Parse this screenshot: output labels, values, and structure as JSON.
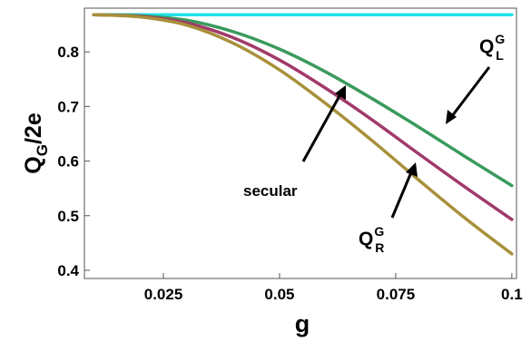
{
  "chart_data": {
    "type": "line",
    "xlabel": "g",
    "ylabel": {
      "main": "Q",
      "sub": "G",
      "rest": "/2e"
    },
    "xlim": [
      0.008,
      0.101
    ],
    "ylim": [
      0.385,
      0.88
    ],
    "xticks": [
      {
        "value": 0.025,
        "label": "0.025"
      },
      {
        "value": 0.05,
        "label": "0.05"
      },
      {
        "value": 0.075,
        "label": "0.075"
      },
      {
        "value": 0.1,
        "label": "0.1"
      }
    ],
    "yticks": [
      {
        "value": 0.4,
        "label": "0.4"
      },
      {
        "value": 0.5,
        "label": "0.5"
      },
      {
        "value": 0.6,
        "label": "0.6"
      },
      {
        "value": 0.7,
        "label": "0.7"
      },
      {
        "value": 0.8,
        "label": "0.8"
      }
    ],
    "grid": false,
    "series": [
      {
        "key": "flat",
        "color": "#22e0e8",
        "x": [
          0.01,
          0.02,
          0.03,
          0.04,
          0.05,
          0.06,
          0.07,
          0.08,
          0.09,
          0.1
        ],
        "y": [
          0.868,
          0.868,
          0.868,
          0.868,
          0.868,
          0.868,
          0.868,
          0.868,
          0.868,
          0.868
        ]
      },
      {
        "key": "QL",
        "color": "#3a9a5c",
        "x": [
          0.01,
          0.02,
          0.03,
          0.04,
          0.05,
          0.06,
          0.07,
          0.08,
          0.09,
          0.1
        ],
        "y": [
          0.868,
          0.866,
          0.858,
          0.837,
          0.805,
          0.763,
          0.714,
          0.662,
          0.608,
          0.555
        ]
      },
      {
        "key": "secular",
        "color": "#a03a6a",
        "x": [
          0.01,
          0.02,
          0.03,
          0.04,
          0.05,
          0.06,
          0.07,
          0.08,
          0.09,
          0.1
        ],
        "y": [
          0.868,
          0.865,
          0.853,
          0.826,
          0.785,
          0.733,
          0.675,
          0.613,
          0.552,
          0.493
        ]
      },
      {
        "key": "QR",
        "color": "#a8903a",
        "x": [
          0.01,
          0.02,
          0.03,
          0.04,
          0.05,
          0.06,
          0.07,
          0.08,
          0.09,
          0.1
        ],
        "y": [
          0.868,
          0.864,
          0.849,
          0.816,
          0.767,
          0.705,
          0.637,
          0.565,
          0.495,
          0.43
        ]
      }
    ],
    "annotations": [
      {
        "key": "QL",
        "main": "Q",
        "sup": "G",
        "sub": "L"
      },
      {
        "key": "secular",
        "text": "secular"
      },
      {
        "key": "QR",
        "main": "Q",
        "sup": "G",
        "sub": "R"
      }
    ]
  }
}
